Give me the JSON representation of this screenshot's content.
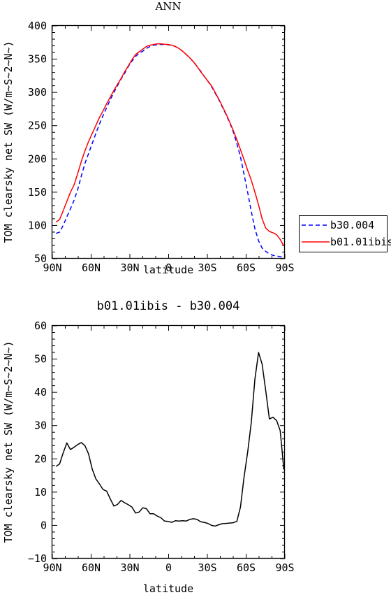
{
  "chart_data": [
    {
      "type": "line",
      "title": "ANN",
      "xlabel": "latitude",
      "ylabel": "TOM clearsky net SW (W/m~S~2~N~)",
      "ylim": [
        50,
        400
      ],
      "xlim": [
        90,
        -90
      ],
      "yticks": [
        "50",
        "100",
        "150",
        "200",
        "250",
        "300",
        "350",
        "400"
      ],
      "xticks": [
        {
          "value": 90,
          "label": "90N"
        },
        {
          "value": 60,
          "label": "60N"
        },
        {
          "value": 30,
          "label": "30N"
        },
        {
          "value": 0,
          "label": "0"
        },
        {
          "value": -30,
          "label": "30S"
        },
        {
          "value": -60,
          "label": "60S"
        },
        {
          "value": -90,
          "label": "90S"
        }
      ],
      "legend": "right",
      "series": [
        {
          "name": "b30.004",
          "color": "#0000ff",
          "dash": "dashed",
          "points": [
            [
              87.2,
              88
            ],
            [
              84.4,
              90
            ],
            [
              81.6,
              100
            ],
            [
              78.8,
              113
            ],
            [
              76,
              125
            ],
            [
              73.2,
              138
            ],
            [
              70.4,
              154
            ],
            [
              67.6,
              174
            ],
            [
              64.8,
              193
            ],
            [
              62,
              208
            ],
            [
              59.2,
              223
            ],
            [
              56.4,
              238
            ],
            [
              53.6,
              252
            ],
            [
              50.8,
              265
            ],
            [
              48,
              277
            ],
            [
              45.2,
              289
            ],
            [
              42.4,
              300
            ],
            [
              39.6,
              310
            ],
            [
              36.8,
              320
            ],
            [
              34,
              329
            ],
            [
              31.2,
              339
            ],
            [
              28.4,
              347
            ],
            [
              25.6,
              354
            ],
            [
              22.8,
              359
            ],
            [
              20,
              362
            ],
            [
              17.2,
              366
            ],
            [
              14.4,
              369
            ],
            [
              11.6,
              371
            ],
            [
              8.8,
              371.5
            ],
            [
              6,
              372
            ],
            [
              3.2,
              372
            ],
            [
              0.4,
              371.5
            ],
            [
              -2.4,
              371
            ],
            [
              -5.2,
              369
            ],
            [
              -8,
              366
            ],
            [
              -10.8,
              362
            ],
            [
              -13.6,
              357
            ],
            [
              -16.4,
              352
            ],
            [
              -19.2,
              346
            ],
            [
              -22,
              339
            ],
            [
              -24.8,
              332
            ],
            [
              -27.6,
              324
            ],
            [
              -30.4,
              317
            ],
            [
              -33.2,
              309
            ],
            [
              -36,
              299
            ],
            [
              -38.8,
              289
            ],
            [
              -41.6,
              278
            ],
            [
              -44.4,
              267
            ],
            [
              -47.2,
              255
            ],
            [
              -50,
              241
            ],
            [
              -52.8,
              223
            ],
            [
              -55.6,
              203
            ],
            [
              -58.4,
              177
            ],
            [
              -61.2,
              150
            ],
            [
              -64,
              121
            ],
            [
              -66.8,
              95
            ],
            [
              -69.6,
              77
            ],
            [
              -72.4,
              66
            ],
            [
              -75.2,
              61
            ],
            [
              -78,
              57
            ],
            [
              -80.8,
              55
            ],
            [
              -83.6,
              54
            ],
            [
              -86.4,
              53
            ],
            [
              -89.2,
              52
            ]
          ]
        },
        {
          "name": "b01.01ibis",
          "color": "#ff0000",
          "dash": "solid",
          "points": [
            [
              87.2,
              105
            ],
            [
              84.4,
              109
            ],
            [
              81.6,
              122
            ],
            [
              78.8,
              136
            ],
            [
              76,
              150
            ],
            [
              73.2,
              161
            ],
            [
              70.4,
              178
            ],
            [
              67.6,
              196
            ],
            [
              64.8,
              212
            ],
            [
              62,
              226
            ],
            [
              59.2,
              238
            ],
            [
              56.4,
              250
            ],
            [
              53.6,
              262
            ],
            [
              50.8,
              272
            ],
            [
              48,
              283
            ],
            [
              45.2,
              293
            ],
            [
              42.4,
              303
            ],
            [
              39.6,
              312
            ],
            [
              36.8,
              321
            ],
            [
              34,
              331
            ],
            [
              31.2,
              340
            ],
            [
              28.4,
              349
            ],
            [
              25.6,
              357
            ],
            [
              22.8,
              361
            ],
            [
              20,
              365
            ],
            [
              17.2,
              369
            ],
            [
              14.4,
              371
            ],
            [
              11.6,
              372
            ],
            [
              8.8,
              373
            ],
            [
              6,
              373
            ],
            [
              3.2,
              372.5
            ],
            [
              0.4,
              372
            ],
            [
              -2.4,
              371
            ],
            [
              -5.2,
              369
            ],
            [
              -8,
              366
            ],
            [
              -10.8,
              362
            ],
            [
              -13.6,
              357
            ],
            [
              -16.4,
              352
            ],
            [
              -19.2,
              346
            ],
            [
              -22,
              339
            ],
            [
              -24.8,
              331
            ],
            [
              -27.6,
              324
            ],
            [
              -30.4,
              317
            ],
            [
              -33.2,
              310
            ],
            [
              -36,
              300
            ],
            [
              -38.8,
              290
            ],
            [
              -41.6,
              279
            ],
            [
              -44.4,
              268
            ],
            [
              -47.2,
              256
            ],
            [
              -50,
              243
            ],
            [
              -52.8,
              229
            ],
            [
              -55.6,
              214
            ],
            [
              -58.4,
              199
            ],
            [
              -61.2,
              183
            ],
            [
              -64,
              168
            ],
            [
              -66.8,
              150
            ],
            [
              -69.6,
              131
            ],
            [
              -72.4,
              110
            ],
            [
              -75.2,
              96
            ],
            [
              -78,
              91
            ],
            [
              -80.8,
              89
            ],
            [
              -83.6,
              86
            ],
            [
              -86.4,
              79
            ],
            [
              -89.2,
              69
            ]
          ]
        }
      ]
    },
    {
      "type": "line",
      "title": "b01.01ibis - b30.004",
      "xlabel": "latitude",
      "ylabel": "TOM clearsky net SW (W/m~S~2~N~)",
      "ylim": [
        -10,
        60
      ],
      "xlim": [
        90,
        -90
      ],
      "yticks": [
        "−10",
        "0",
        "10",
        "20",
        "30",
        "40",
        "50",
        "60"
      ],
      "xticks": [
        {
          "value": 90,
          "label": "90N"
        },
        {
          "value": 60,
          "label": "60N"
        },
        {
          "value": 30,
          "label": "30N"
        },
        {
          "value": 0,
          "label": "0"
        },
        {
          "value": -30,
          "label": "30S"
        },
        {
          "value": -60,
          "label": "60S"
        },
        {
          "value": -90,
          "label": "90S"
        }
      ],
      "series": [
        {
          "color": "#000000",
          "dash": "solid",
          "points": [
            [
              87.2,
              17.7
            ],
            [
              84.4,
              18.5
            ],
            [
              81.6,
              21.8
            ],
            [
              78.8,
              24.8
            ],
            [
              76,
              22.8
            ],
            [
              73.2,
              23.5
            ],
            [
              70.4,
              24.3
            ],
            [
              67.6,
              24.9
            ],
            [
              64.8,
              24
            ],
            [
              62,
              21.5
            ],
            [
              59.2,
              17
            ],
            [
              56.4,
              14
            ],
            [
              53.6,
              12.5
            ],
            [
              50.8,
              10.8
            ],
            [
              48,
              10.3
            ],
            [
              45.2,
              8
            ],
            [
              42.4,
              5.8
            ],
            [
              39.6,
              6.3
            ],
            [
              36.8,
              7.5
            ],
            [
              34,
              6.8
            ],
            [
              31.2,
              6.2
            ],
            [
              28.4,
              5.5
            ],
            [
              25.6,
              3.7
            ],
            [
              22.8,
              4
            ],
            [
              20,
              5.3
            ],
            [
              17.2,
              5
            ],
            [
              14.4,
              3.5
            ],
            [
              11.6,
              3.5
            ],
            [
              8.8,
              2.8
            ],
            [
              6,
              2.3
            ],
            [
              3.2,
              1.3
            ],
            [
              0.4,
              1.2
            ],
            [
              -2.4,
              0.9
            ],
            [
              -5.2,
              1.4
            ],
            [
              -8,
              1.3
            ],
            [
              -10.8,
              1.4
            ],
            [
              -13.6,
              1.3
            ],
            [
              -16.4,
              1.8
            ],
            [
              -19.2,
              2
            ],
            [
              -22,
              1.8
            ],
            [
              -24.8,
              1.1
            ],
            [
              -27.6,
              0.9
            ],
            [
              -30.4,
              0.6
            ],
            [
              -33.2,
              0
            ],
            [
              -36,
              -0.2
            ],
            [
              -38.8,
              0.2
            ],
            [
              -41.6,
              0.5
            ],
            [
              -44.4,
              0.6
            ],
            [
              -47.2,
              0.7
            ],
            [
              -50,
              0.8
            ],
            [
              -52.8,
              1.2
            ],
            [
              -55.6,
              5.5
            ],
            [
              -58.4,
              14.5
            ],
            [
              -61.2,
              22
            ],
            [
              -64,
              31
            ],
            [
              -66.8,
              44
            ],
            [
              -69.6,
              52
            ],
            [
              -72.4,
              48.5
            ],
            [
              -75.2,
              40.5
            ],
            [
              -78,
              32
            ],
            [
              -80.8,
              32.5
            ],
            [
              -83.6,
              31.5
            ],
            [
              -86.4,
              28.5
            ],
            [
              -89.2,
              16.8
            ]
          ]
        }
      ]
    }
  ]
}
